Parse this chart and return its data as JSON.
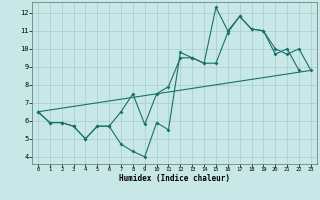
{
  "xlabel": "Humidex (Indice chaleur)",
  "bg_color": "#c8e8e8",
  "grid_color": "#a8cccc",
  "line_color": "#1a7068",
  "xlim_min": -0.5,
  "xlim_max": 23.5,
  "ylim_min": 3.6,
  "ylim_max": 12.6,
  "xticks": [
    0,
    1,
    2,
    3,
    4,
    5,
    6,
    7,
    8,
    9,
    10,
    11,
    12,
    13,
    14,
    15,
    16,
    17,
    18,
    19,
    20,
    21,
    22,
    23
  ],
  "yticks": [
    4,
    5,
    6,
    7,
    8,
    9,
    10,
    11,
    12
  ],
  "line1_x": [
    0,
    1,
    2,
    3,
    4,
    5,
    6,
    7,
    8,
    9,
    10,
    11,
    12,
    13,
    14,
    15,
    16,
    17,
    18,
    19,
    20,
    21,
    22
  ],
  "line1_y": [
    6.5,
    5.9,
    5.9,
    5.7,
    5.0,
    5.7,
    5.7,
    4.7,
    4.3,
    4.0,
    5.9,
    5.5,
    9.8,
    9.5,
    9.2,
    9.2,
    10.9,
    11.8,
    11.1,
    11.0,
    9.7,
    10.0,
    8.8
  ],
  "line2_x": [
    0,
    1,
    2,
    3,
    4,
    5,
    6,
    7,
    8,
    9,
    10,
    11,
    12,
    13,
    14,
    15,
    16,
    17,
    18,
    19,
    20,
    21,
    22,
    23
  ],
  "line2_y": [
    6.5,
    5.9,
    5.9,
    5.7,
    5.0,
    5.7,
    5.7,
    6.5,
    7.5,
    5.8,
    7.5,
    7.9,
    9.5,
    9.5,
    9.2,
    12.3,
    11.0,
    11.8,
    11.1,
    11.0,
    10.0,
    9.7,
    10.0,
    8.8
  ],
  "trend_x": [
    0,
    23
  ],
  "trend_y": [
    6.5,
    8.8
  ]
}
